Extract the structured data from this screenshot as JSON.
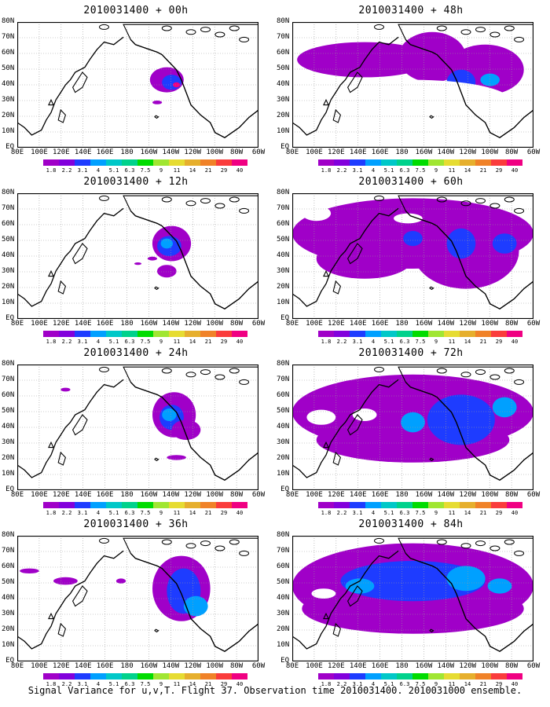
{
  "figure": {
    "caption": "Signal Variance for u,v,T. Flight 37. Observation time 2010031400. 2010031000 ensemble.",
    "lat_labels": [
      "80N",
      "70N",
      "60N",
      "50N",
      "40N",
      "30N",
      "20N",
      "10N",
      "EQ"
    ],
    "lon_labels": [
      "80E",
      "100E",
      "120E",
      "140E",
      "160E",
      "180",
      "160W",
      "140W",
      "120W",
      "100W",
      "80W",
      "60W"
    ],
    "colorbar": {
      "labels": [
        "1.8",
        "2.2",
        "3.1",
        "4",
        "5.1",
        "6.3",
        "7.5",
        "9",
        "11",
        "14",
        "21",
        "29",
        "40"
      ],
      "colors": [
        "#a000c8",
        "#8200dc",
        "#1e3cff",
        "#00a0ff",
        "#00c8c8",
        "#00d28c",
        "#00dc00",
        "#a0e632",
        "#e6dc32",
        "#e6af2d",
        "#f08228",
        "#fa3c3c",
        "#f00082"
      ]
    },
    "panels": [
      {
        "title": "2010031400 + 00h",
        "level": 1
      },
      {
        "title": "2010031400 + 48h",
        "level": 5
      },
      {
        "title": "2010031400 + 12h",
        "level": 2
      },
      {
        "title": "2010031400 + 60h",
        "level": 6
      },
      {
        "title": "2010031400 + 24h",
        "level": 3
      },
      {
        "title": "2010031400 + 72h",
        "level": 7
      },
      {
        "title": "2010031400 + 36h",
        "level": 4
      },
      {
        "title": "2010031400 + 84h",
        "level": 8
      }
    ]
  }
}
